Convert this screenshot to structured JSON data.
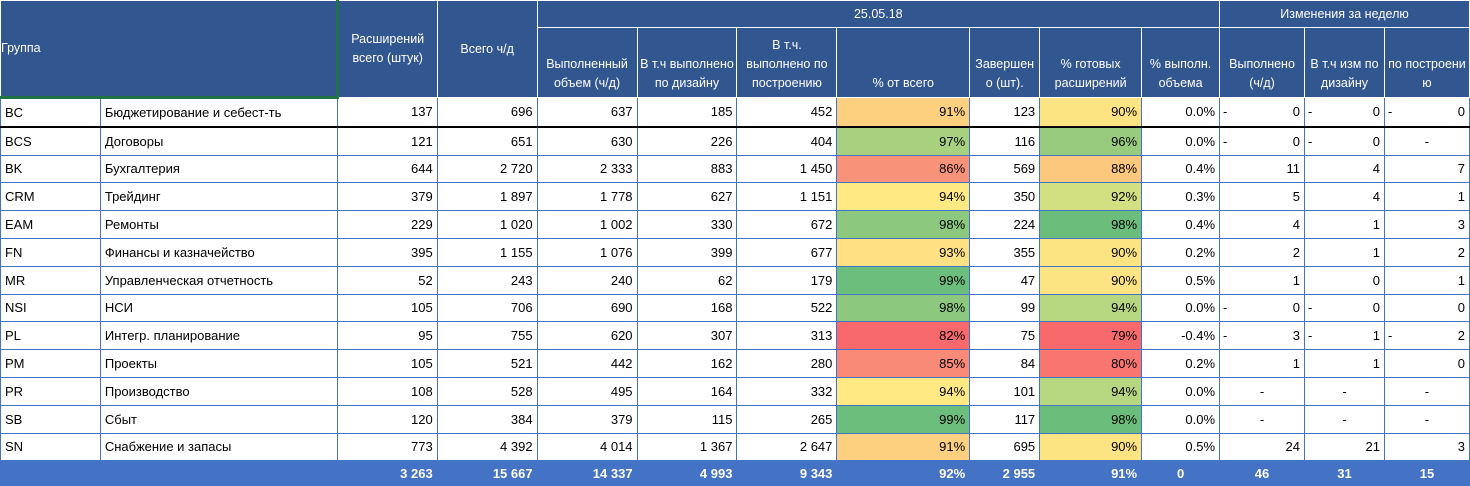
{
  "header": {
    "group": "Группа",
    "total_ext": "Расширений всего (штук)",
    "total_hours": "Всего ч/д",
    "date": "25.05.18",
    "done_volume": "Выполненный объем (ч/д)",
    "done_design": "В т.ч выполнено по дизайну",
    "done_build": "В т.ч. выполнено по построению",
    "pct_total": "% от всего",
    "completed": "Завершен о (шт).",
    "pct_ready": "% готовых расширений",
    "weekly": "Изменения за неделю",
    "w_pct": "% выполн. объема",
    "w_done": "Выполнено (ч/д)",
    "w_design": "В т.ч изм по дизайну",
    "w_build": "по построени ю"
  },
  "rows": [
    {
      "code": "BC",
      "name": "Бюджетирование и себест-ть",
      "ext": "137",
      "hours": "696",
      "done": "637",
      "design": "185",
      "build": "452",
      "pct": "91%",
      "pct_color": "#fcd07f",
      "completed": "123",
      "ready": "90%",
      "ready_color": "#fde483",
      "w_pct": "0.0%",
      "w_done_pre": "-",
      "w_done": "0",
      "w_design_pre": "-",
      "w_design": "0",
      "w_build_pre": "-",
      "w_build": "0"
    },
    {
      "code": "BCS",
      "name": "Договоры",
      "ext": "121",
      "hours": "651",
      "done": "630",
      "design": "226",
      "build": "404",
      "pct": "97%",
      "pct_color": "#a7d17e",
      "completed": "116",
      "ready": "96%",
      "ready_color": "#99cb7e",
      "w_pct": "0.0%",
      "w_done_pre": "-",
      "w_done": "0",
      "w_design_pre": "-",
      "w_design": "0",
      "w_build_pre": "",
      "w_build": "-"
    },
    {
      "code": "BK",
      "name": "Бухгалтерия",
      "ext": "644",
      "hours": "2 720",
      "done": "2 333",
      "design": "883",
      "build": "1 450",
      "pct": "86%",
      "pct_color": "#f8937a",
      "completed": "569",
      "ready": "88%",
      "ready_color": "#fcc87d",
      "w_pct": "0.4%",
      "w_done_pre": "",
      "w_done": "11",
      "w_design_pre": "",
      "w_design": "4",
      "w_build_pre": "",
      "w_build": "7"
    },
    {
      "code": "CRM",
      "name": "Трейдинг",
      "ext": "379",
      "hours": "1 897",
      "done": "1 778",
      "design": "627",
      "build": "1 151",
      "pct": "94%",
      "pct_color": "#fee983",
      "completed": "350",
      "ready": "92%",
      "ready_color": "#d3e082",
      "w_pct": "0.3%",
      "w_done_pre": "",
      "w_done": "5",
      "w_design_pre": "",
      "w_design": "4",
      "w_build_pre": "",
      "w_build": "1"
    },
    {
      "code": "EAM",
      "name": "Ремонты",
      "ext": "229",
      "hours": "1 020",
      "done": "1 002",
      "design": "330",
      "build": "672",
      "pct": "98%",
      "pct_color": "#8cc87e",
      "completed": "224",
      "ready": "98%",
      "ready_color": "#6abd7b",
      "w_pct": "0.4%",
      "w_done_pre": "",
      "w_done": "4",
      "w_design_pre": "",
      "w_design": "1",
      "w_build_pre": "",
      "w_build": "3"
    },
    {
      "code": "FN",
      "name": "Финансы и казначейство",
      "ext": "395",
      "hours": "1 155",
      "done": "1 076",
      "design": "399",
      "build": "677",
      "pct": "93%",
      "pct_color": "#fee182",
      "completed": "355",
      "ready": "90%",
      "ready_color": "#fde483",
      "w_pct": "0.2%",
      "w_done_pre": "",
      "w_done": "2",
      "w_design_pre": "",
      "w_design": "1",
      "w_build_pre": "",
      "w_build": "2"
    },
    {
      "code": "MR",
      "name": "Управленческая отчетность",
      "ext": "52",
      "hours": "243",
      "done": "240",
      "design": "62",
      "build": "179",
      "pct": "99%",
      "pct_color": "#6cbe7c",
      "completed": "47",
      "ready": "90%",
      "ready_color": "#fde483",
      "w_pct": "0.5%",
      "w_done_pre": "",
      "w_done": "1",
      "w_design_pre": "",
      "w_design": "0",
      "w_build_pre": "",
      "w_build": "1"
    },
    {
      "code": "NSI",
      "name": "НСИ",
      "ext": "105",
      "hours": "706",
      "done": "690",
      "design": "168",
      "build": "522",
      "pct": "98%",
      "pct_color": "#8cc87e",
      "completed": "99",
      "ready": "94%",
      "ready_color": "#b7d680",
      "w_pct": "0.0%",
      "w_done_pre": "-",
      "w_done": "0",
      "w_design_pre": "-",
      "w_design": "0",
      "w_build_pre": "",
      "w_build": "0"
    },
    {
      "code": "PL",
      "name": "Интегр. планирование",
      "ext": "95",
      "hours": "755",
      "done": "620",
      "design": "307",
      "build": "313",
      "pct": "82%",
      "pct_color": "#f8696b",
      "completed": "75",
      "ready": "79%",
      "ready_color": "#f8696b",
      "w_pct": "-0.4%",
      "w_done_pre": "-",
      "w_done": "3",
      "w_design_pre": "-",
      "w_design": "1",
      "w_build_pre": "-",
      "w_build": "2"
    },
    {
      "code": "PM",
      "name": "Проекты",
      "ext": "105",
      "hours": "521",
      "done": "442",
      "design": "162",
      "build": "280",
      "pct": "85%",
      "pct_color": "#f88a77",
      "completed": "84",
      "ready": "80%",
      "ready_color": "#f87570",
      "w_pct": "0.2%",
      "w_done_pre": "",
      "w_done": "1",
      "w_design_pre": "",
      "w_design": "1",
      "w_build_pre": "",
      "w_build": "0"
    },
    {
      "code": "PR",
      "name": "Производство",
      "ext": "108",
      "hours": "528",
      "done": "495",
      "design": "164",
      "build": "332",
      "pct": "94%",
      "pct_color": "#fee983",
      "completed": "101",
      "ready": "94%",
      "ready_color": "#b7d680",
      "w_pct": "0.0%",
      "w_done_pre": "",
      "w_done": "-",
      "w_design_pre": "",
      "w_design": "-",
      "w_build_pre": "",
      "w_build": "-"
    },
    {
      "code": "SB",
      "name": "Сбыт",
      "ext": "120",
      "hours": "384",
      "done": "379",
      "design": "115",
      "build": "265",
      "pct": "99%",
      "pct_color": "#6cbe7c",
      "completed": "117",
      "ready": "98%",
      "ready_color": "#6abd7b",
      "w_pct": "0.0%",
      "w_done_pre": "",
      "w_done": "-",
      "w_design_pre": "",
      "w_design": "-",
      "w_build_pre": "",
      "w_build": "-"
    },
    {
      "code": "SN",
      "name": "Снабжение и запасы",
      "ext": "773",
      "hours": "4 392",
      "done": "4 014",
      "design": "1 367",
      "build": "2 647",
      "pct": "91%",
      "pct_color": "#fcd07f",
      "completed": "695",
      "ready": "90%",
      "ready_color": "#fde483",
      "w_pct": "0.5%",
      "w_done_pre": "",
      "w_done": "24",
      "w_design_pre": "",
      "w_design": "21",
      "w_build_pre": "",
      "w_build": "3"
    }
  ],
  "totals": {
    "ext": "3 263",
    "hours": "15 667",
    "done": "14 337",
    "design": "4 993",
    "build": "9 343",
    "pct": "92%",
    "completed": "2 955",
    "ready": "91%",
    "w_pct": "0",
    "w_done": "46",
    "w_design": "31",
    "w_build": "15"
  }
}
